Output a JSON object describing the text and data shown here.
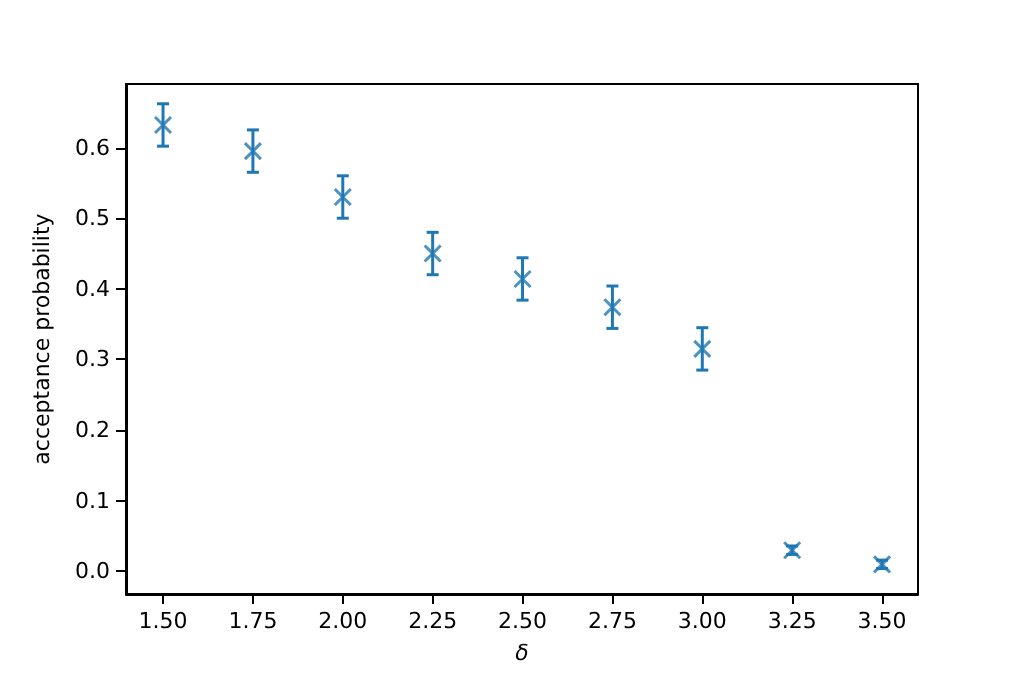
{
  "chart_data": {
    "type": "scatter",
    "xlabel": "δ",
    "ylabel": "acceptance probability",
    "x": [
      1.5,
      1.75,
      2.0,
      2.25,
      2.5,
      2.75,
      3.0,
      3.25,
      3.5
    ],
    "series": [
      {
        "color": "#1f77b4",
        "values": [
          0.632,
          0.595,
          0.53,
          0.45,
          0.414,
          0.374,
          0.315,
          0.03,
          0.01
        ],
        "errors": [
          0.03,
          0.03,
          0.03,
          0.03,
          0.03,
          0.03,
          0.03,
          0.006,
          0.006
        ]
      }
    ],
    "xlim": [
      1.397,
      3.6
    ],
    "xticks": [
      {
        "value": 1.5,
        "label": "1.50"
      },
      {
        "value": 1.75,
        "label": "1.75"
      },
      {
        "value": 2.0,
        "label": "2.00"
      },
      {
        "value": 2.25,
        "label": "2.25"
      },
      {
        "value": 2.5,
        "label": "2.50"
      },
      {
        "value": 2.75,
        "label": "2.75"
      },
      {
        "value": 3.0,
        "label": "3.00"
      },
      {
        "value": 3.25,
        "label": "3.25"
      },
      {
        "value": 3.5,
        "label": "3.50"
      }
    ],
    "ylim": [
      -0.032,
      0.69
    ],
    "yticks": [
      {
        "value": 0,
        "label": "0.0"
      },
      {
        "value": 0.1,
        "label": "0.1"
      },
      {
        "value": 0.2,
        "label": "0.2"
      },
      {
        "value": 0.3,
        "label": "0.3"
      },
      {
        "value": 0.4,
        "label": "0.4"
      },
      {
        "value": 0.5,
        "label": "0.5"
      },
      {
        "value": 0.6,
        "label": "0.6"
      }
    ],
    "grid": false,
    "marker": "cross"
  }
}
